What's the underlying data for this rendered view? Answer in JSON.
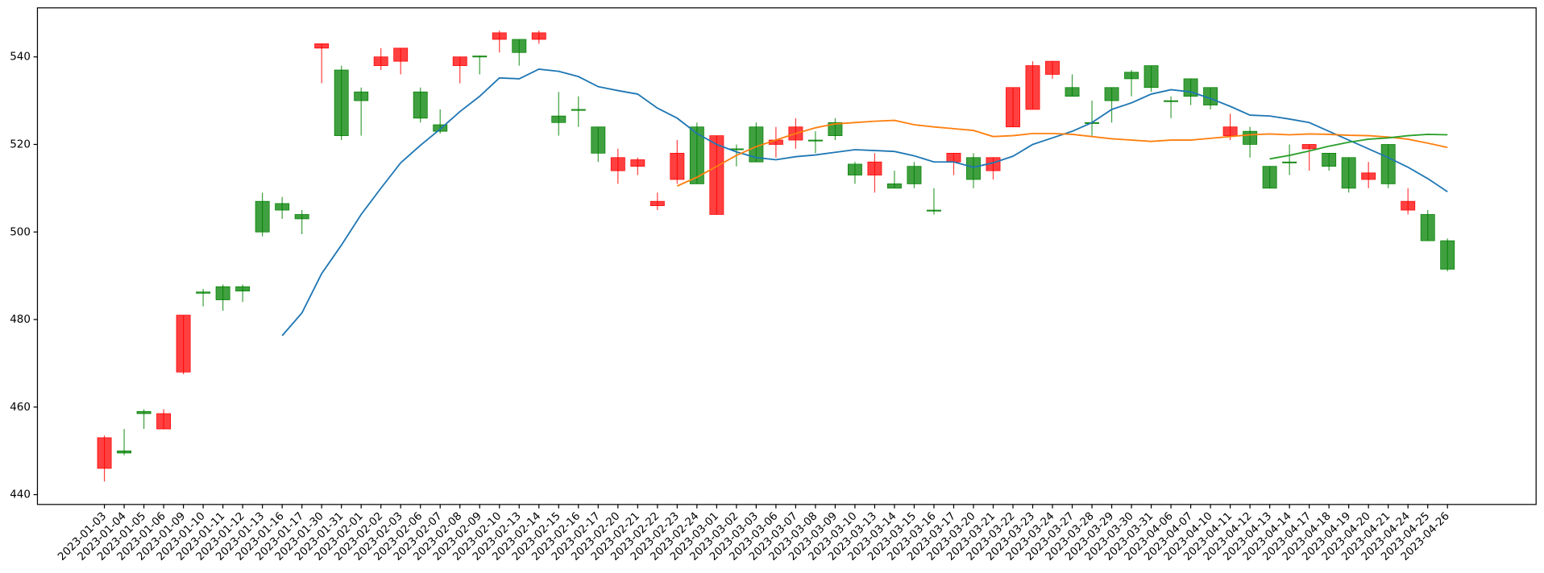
{
  "chart_data": {
    "type": "candlestick",
    "categories": [
      "2023-01-03",
      "2023-01-04",
      "2023-01-05",
      "2023-01-06",
      "2023-01-09",
      "2023-01-10",
      "2023-01-11",
      "2023-01-12",
      "2023-01-13",
      "2023-01-16",
      "2023-01-17",
      "2023-01-30",
      "2023-01-31",
      "2023-02-01",
      "2023-02-02",
      "2023-02-03",
      "2023-02-06",
      "2023-02-07",
      "2023-02-08",
      "2023-02-09",
      "2023-02-10",
      "2023-02-13",
      "2023-02-14",
      "2023-02-15",
      "2023-02-16",
      "2023-02-17",
      "2023-02-20",
      "2023-02-21",
      "2023-02-22",
      "2023-02-23",
      "2023-02-24",
      "2023-03-01",
      "2023-03-02",
      "2023-03-03",
      "2023-03-06",
      "2023-03-07",
      "2023-03-08",
      "2023-03-09",
      "2023-03-10",
      "2023-03-13",
      "2023-03-14",
      "2023-03-15",
      "2023-03-16",
      "2023-03-17",
      "2023-03-20",
      "2023-03-21",
      "2023-03-22",
      "2023-03-23",
      "2023-03-24",
      "2023-03-27",
      "2023-03-28",
      "2023-03-29",
      "2023-03-30",
      "2023-03-31",
      "2023-04-06",
      "2023-04-07",
      "2023-04-10",
      "2023-04-11",
      "2023-04-12",
      "2023-04-13",
      "2023-04-14",
      "2023-04-17",
      "2023-04-18",
      "2023-04-19",
      "2023-04-20",
      "2023-04-21",
      "2023-04-24",
      "2023-04-25",
      "2023-04-26"
    ],
    "open": [
      453,
      449.5,
      458.5,
      458.5,
      481,
      486,
      484.5,
      486.5,
      500,
      505,
      503,
      543,
      522,
      530,
      540,
      542,
      526,
      523,
      540,
      540,
      545.5,
      541,
      545.5,
      525,
      527.8,
      518,
      517,
      516.5,
      507,
      518,
      511,
      522,
      518.8,
      516,
      521,
      524,
      520.8,
      522,
      513,
      516,
      510,
      511,
      504.8,
      518,
      512,
      517,
      533,
      538,
      539,
      531,
      524.8,
      530,
      535,
      533,
      529.8,
      531,
      529,
      524,
      520,
      510,
      515.8,
      520,
      515,
      510,
      513.5,
      511,
      507,
      498,
      491.5
    ],
    "high": [
      453.5,
      455,
      459.5,
      459.5,
      481,
      487,
      488,
      488,
      509,
      508,
      505,
      543,
      538,
      533,
      542,
      542,
      533,
      528,
      540,
      540.3,
      546,
      544,
      546,
      532,
      531,
      524,
      519,
      517,
      509,
      521,
      525,
      522,
      520,
      525,
      524,
      526,
      523,
      526,
      516,
      518,
      514,
      516,
      510,
      518,
      518,
      517,
      533,
      539,
      539,
      536,
      530,
      533,
      537,
      538,
      531,
      535,
      533,
      527,
      524,
      515,
      520,
      520,
      518,
      517,
      516,
      520,
      510,
      505,
      498.5
    ],
    "low": [
      443,
      449,
      455,
      455,
      467.5,
      483,
      482,
      484,
      499,
      503,
      499.5,
      534,
      521,
      522,
      537,
      536,
      525,
      522.5,
      534,
      536,
      541,
      538,
      543,
      522,
      524,
      516,
      511,
      513,
      505,
      511,
      511,
      504,
      515,
      516,
      517,
      519,
      518,
      521,
      511,
      509,
      510,
      510,
      504,
      513,
      510,
      512,
      524,
      528,
      535,
      531,
      522,
      525,
      531,
      532,
      526,
      529,
      528,
      521,
      517,
      510,
      513,
      514,
      514,
      509,
      510,
      510,
      504,
      498,
      491
    ],
    "close": [
      446,
      450,
      459,
      455,
      468,
      486.3,
      487.5,
      487.5,
      507,
      506.5,
      504,
      542,
      537,
      532,
      538,
      539,
      532,
      524.5,
      538,
      540.2,
      544,
      544,
      544,
      526.5,
      528,
      524,
      514,
      515,
      506,
      512,
      524,
      504,
      519,
      524,
      520,
      521,
      521,
      525,
      515.5,
      513,
      511,
      515,
      505,
      516,
      517,
      514,
      524,
      528,
      536,
      533,
      525,
      533,
      536.5,
      538,
      530,
      535,
      533,
      522,
      523,
      515,
      516,
      519,
      518,
      517,
      512,
      520,
      505,
      504,
      498
    ],
    "up_color": "#008000",
    "down_color": "#ff0000",
    "lines": [
      {
        "color": "#1f77b4",
        "values": [
          null,
          null,
          null,
          null,
          null,
          null,
          null,
          null,
          null,
          476.3,
          481.5,
          490.5,
          497,
          504,
          510,
          515.8,
          519.8,
          523.5,
          527.5,
          531,
          535.2,
          535,
          537.2,
          536.7,
          535.5,
          533.2,
          532.3,
          531.5,
          528.3,
          526,
          522.5,
          520,
          518.3,
          517,
          516.5,
          517.2,
          517.6,
          518.2,
          518.8,
          518.6,
          518.4,
          517.4,
          516,
          516,
          514.8,
          515.8,
          517.3,
          520,
          521.5,
          523,
          525,
          528,
          529.5,
          531.5,
          532.5,
          532,
          530.5,
          528.7,
          526.7,
          526.5,
          525.8,
          525,
          523,
          521,
          519,
          517,
          514.8,
          512.2,
          509.2
        ]
      },
      {
        "color": "#ff7f0e",
        "values": [
          null,
          null,
          null,
          null,
          null,
          null,
          null,
          null,
          null,
          null,
          null,
          null,
          null,
          null,
          null,
          null,
          null,
          null,
          null,
          null,
          null,
          null,
          null,
          null,
          null,
          null,
          null,
          null,
          null,
          510.5,
          512.5,
          515,
          517.5,
          519.5,
          521,
          522.5,
          523.8,
          524.7,
          525,
          525.3,
          525.5,
          524.5,
          524,
          523.6,
          523.2,
          521.8,
          522,
          522.5,
          522.5,
          522.3,
          521.8,
          521.3,
          521,
          520.7,
          521,
          521,
          521.4,
          521.8,
          522.2,
          522.4,
          522.2,
          522.4,
          522.3,
          522.1,
          522,
          521.7,
          521.2,
          520.3,
          519.3
        ]
      },
      {
        "color": "#2ca02c",
        "values": [
          null,
          null,
          null,
          null,
          null,
          null,
          null,
          null,
          null,
          null,
          null,
          null,
          null,
          null,
          null,
          null,
          null,
          null,
          null,
          null,
          null,
          null,
          null,
          null,
          null,
          null,
          null,
          null,
          null,
          null,
          null,
          null,
          null,
          null,
          null,
          null,
          null,
          null,
          null,
          null,
          null,
          null,
          null,
          null,
          null,
          null,
          null,
          null,
          null,
          null,
          null,
          null,
          null,
          null,
          null,
          null,
          null,
          null,
          null,
          516.7,
          517.5,
          518.5,
          519.6,
          520.5,
          521.2,
          521.5,
          522,
          522.3,
          522.2
        ]
      }
    ],
    "ylim": [
      437.75,
      551.2
    ],
    "yticks": [
      440,
      460,
      480,
      500,
      520,
      540
    ]
  }
}
